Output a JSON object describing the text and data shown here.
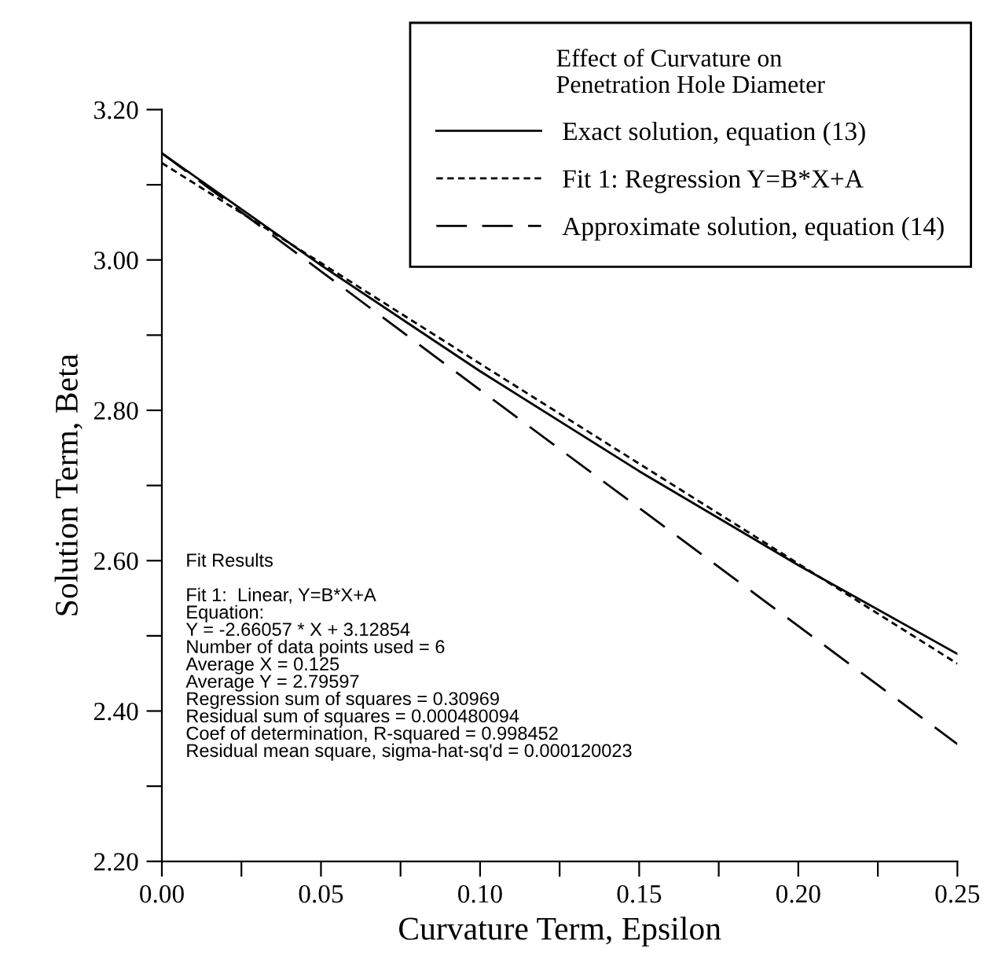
{
  "chart_data": {
    "type": "line",
    "xlabel": "Curvature Term, Epsilon",
    "ylabel": "Solution Term, Beta",
    "legend_title": "Effect of Curvature on\nPenetration Hole Diameter",
    "x": [
      0,
      0.05,
      0.1,
      0.15,
      0.2,
      0.25
    ],
    "series": [
      {
        "name": "Exact solution, equation (13)",
        "color": "#000000",
        "line_style": "solid",
        "values": [
          3.142,
          2.993,
          2.852,
          2.719,
          2.594,
          2.476
        ]
      },
      {
        "name": "Fit 1: Regression Y=B*X+A",
        "color": "#000000",
        "line_style": "dotted",
        "values": [
          3.129,
          2.996,
          2.862,
          2.729,
          2.596,
          2.463
        ]
      },
      {
        "name": "Approximate solution, equation (14)",
        "color": "#000000",
        "line_style": "dashed",
        "values": [
          3.142,
          2.985,
          2.827,
          2.67,
          2.513,
          2.356
        ]
      }
    ],
    "xlim": [
      0,
      0.25
    ],
    "ylim": [
      2.2,
      3.2
    ],
    "xticks": [
      {
        "value": 0,
        "label": "0.00"
      },
      {
        "value": 0.025,
        "label": null
      },
      {
        "value": 0.05,
        "label": "0.05"
      },
      {
        "value": 0.075,
        "label": null
      },
      {
        "value": 0.1,
        "label": "0.10"
      },
      {
        "value": 0.125,
        "label": null
      },
      {
        "value": 0.15,
        "label": "0.15"
      },
      {
        "value": 0.175,
        "label": null
      },
      {
        "value": 0.2,
        "label": "0.20"
      },
      {
        "value": 0.225,
        "label": null
      },
      {
        "value": 0.25,
        "label": "0.25"
      }
    ],
    "yticks": [
      {
        "value": 2.2,
        "label": "2.20"
      },
      {
        "value": 2.3,
        "label": null
      },
      {
        "value": 2.4,
        "label": "2.40"
      },
      {
        "value": 2.5,
        "label": null
      },
      {
        "value": 2.6,
        "label": "2.60"
      },
      {
        "value": 2.7,
        "label": null
      },
      {
        "value": 2.8,
        "label": "2.80"
      },
      {
        "value": 2.9,
        "label": null
      },
      {
        "value": 3.0,
        "label": "3.00"
      },
      {
        "value": 3.1,
        "label": null
      },
      {
        "value": 3.2,
        "label": "3.20"
      }
    ],
    "grid": false,
    "legend": "top right",
    "marker": "none",
    "annotations": [
      "Fit Results\n\nFit 1:  Linear, Y=B*X+A\nEquation:\nY = -2.66057 * X + 3.12854\nNumber of data points used = 6\nAverage X = 0.125\nAverage Y = 2.79597\nRegression sum of squares = 0.30969\nResidual sum of squares = 0.000480094\nCoef of determination, R-squared = 0.998452\nResidual mean square, sigma-hat-sq'd = 0.000120023"
    ]
  }
}
